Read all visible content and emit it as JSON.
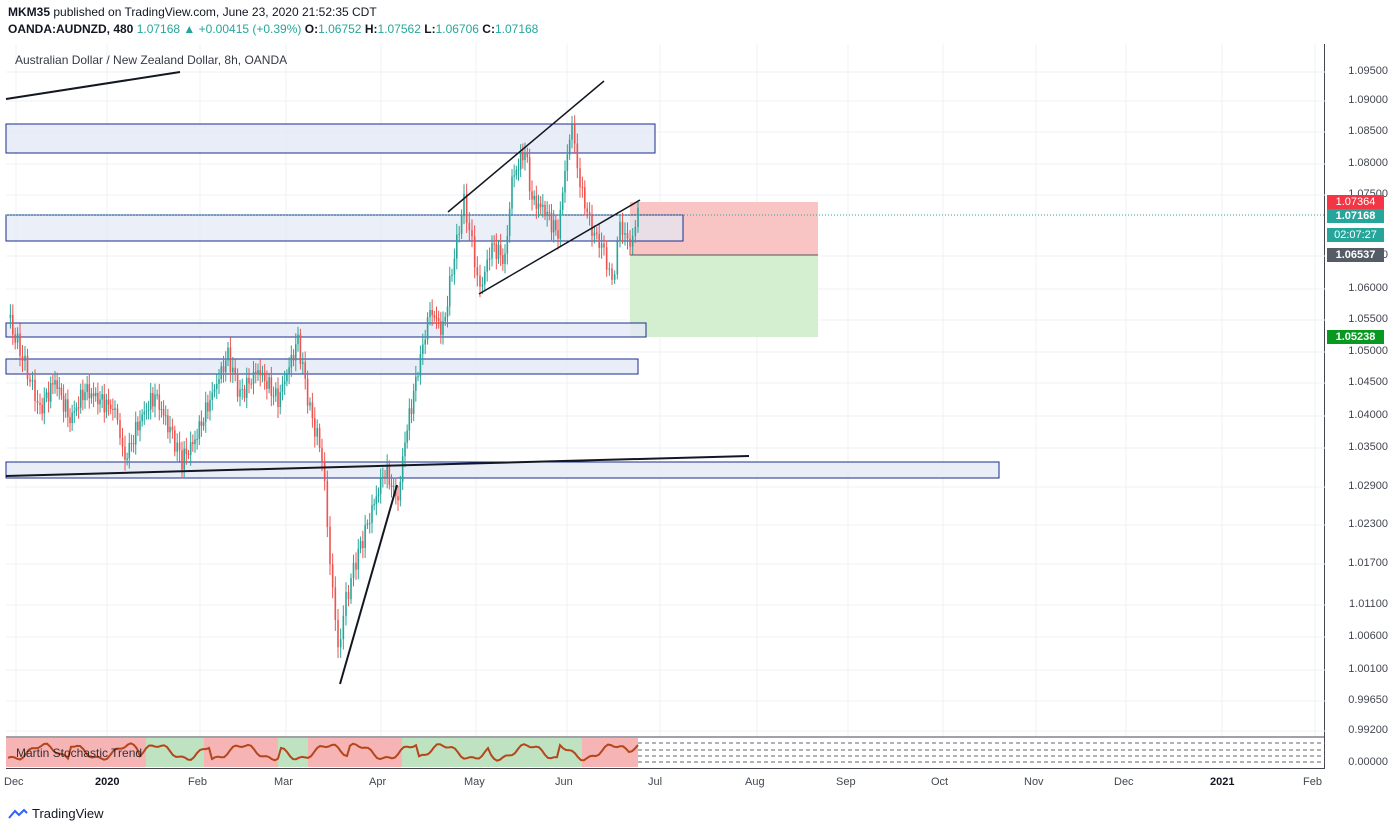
{
  "header": {
    "publisher": "MKM35",
    "published_text": " published on TradingView.com, June 23, 2020 21:52:35 CDT",
    "symbol": "OANDA:AUDNZD, 480",
    "last": "1.07168",
    "change": "+0.00415 (+0.39%)",
    "o_label": "O:",
    "o_value": "1.06752",
    "h_label": "H:",
    "h_value": "1.07562",
    "l_label": "L:",
    "l_value": "1.06706",
    "c_label": "C:",
    "c_value": "1.07168"
  },
  "chart_title": "Australian Dollar / New Zealand Dollar, 8h, OANDA",
  "price_axis": [
    "1.09500",
    "1.09000",
    "1.08500",
    "1.08000",
    "1.07500",
    "1.06500",
    "1.06000",
    "1.05500",
    "1.05000",
    "1.04500",
    "1.04000",
    "1.03500",
    "1.02900",
    "1.02300",
    "1.01700",
    "1.01100",
    "1.00600",
    "1.00100",
    "0.99650",
    "0.99200",
    "0.00000"
  ],
  "price_tags": {
    "stop": "1.07364",
    "current": "1.07168",
    "countdown": "02:07:27",
    "entry": "1.06537",
    "target": "1.05238"
  },
  "time_axis": [
    "Dec",
    "2020",
    "Feb",
    "Mar",
    "Apr",
    "May",
    "Jun",
    "Jul",
    "Aug",
    "Sep",
    "Oct",
    "Nov",
    "Dec",
    "2021",
    "Feb"
  ],
  "indicator_label": "Martin Stochastic Trend",
  "footer": {
    "brand": "TradingView"
  },
  "colors": {
    "up": "#26a69a",
    "down": "#ef5350",
    "stop_zone": "#f8c4c4",
    "target_zone": "#d4efd0",
    "zone_fill": "#e3e8f5",
    "zone_border": "#1a2e8c"
  }
}
